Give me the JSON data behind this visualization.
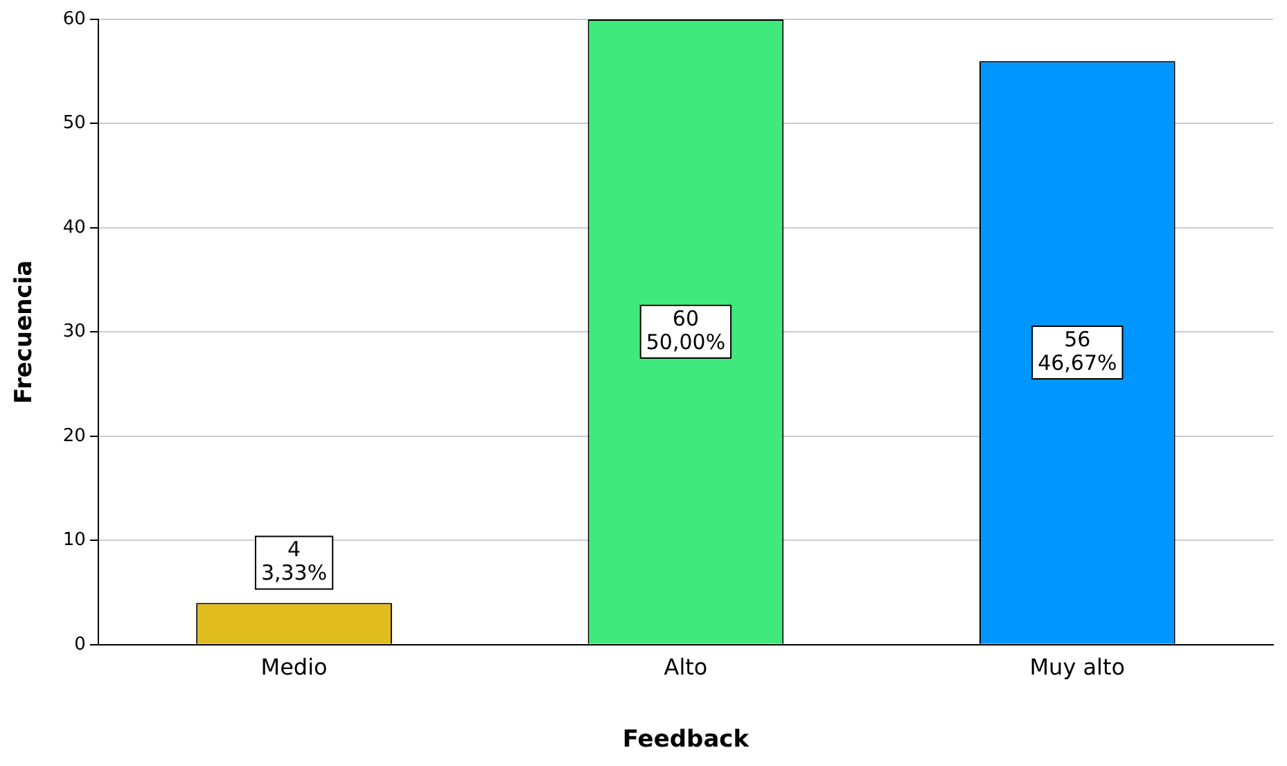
{
  "chart_data": {
    "type": "bar",
    "xlabel": "Feedback",
    "ylabel": "Frecuencia",
    "categories": [
      "Medio",
      "Alto",
      "Muy alto"
    ],
    "values": [
      4,
      60,
      56
    ],
    "colors": [
      "#e0bc1e",
      "#3fe97c",
      "#0096ff"
    ],
    "value_labels": [
      "4\n3,33%",
      "60\n50,00%",
      "56\n46,67%"
    ],
    "ylim": [
      0,
      60
    ],
    "yticks": [
      0,
      10,
      20,
      30,
      40,
      50,
      60
    ],
    "grid": "y",
    "legend": false
  }
}
